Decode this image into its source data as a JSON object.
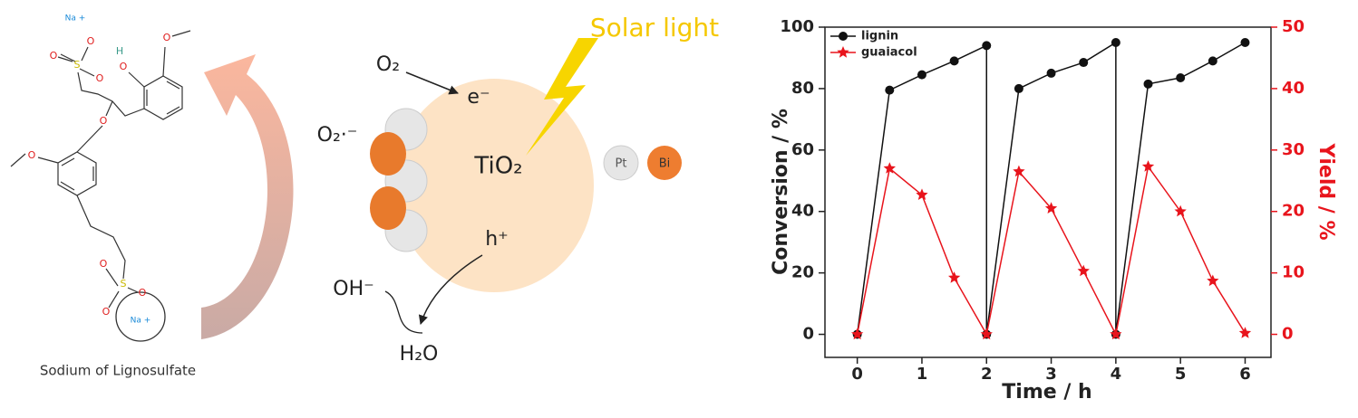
{
  "molecule": {
    "atoms": [
      "Na +",
      "O",
      "O",
      "S",
      "O",
      "H",
      "O",
      "O",
      "O",
      "O",
      "S",
      "O",
      "O",
      "O",
      "Na +"
    ],
    "caption": "Sodium of Lignosulfate"
  },
  "scheme": {
    "solar": "Solar light",
    "oxygen": "O₂",
    "electron": "e⁻",
    "catalyst": "TiO₂",
    "superoxide": "O₂·⁻",
    "hole": "h⁺",
    "hydroxide": "OH⁻",
    "water": "H₂O",
    "pt": "Pt",
    "bi": "Bi"
  },
  "chart_data": {
    "type": "line",
    "xlabel": "Time / h",
    "ylabel": "Conversion / %",
    "y2label": "Yield / %",
    "xlim": [
      -0.5,
      6.4
    ],
    "xticks": [
      0,
      1,
      2,
      3,
      4,
      5,
      6
    ],
    "ylim": [
      -7.5,
      100
    ],
    "yticks": [
      0,
      20,
      40,
      60,
      80,
      100
    ],
    "y2lim": [
      -3.75,
      50
    ],
    "y2ticks": [
      0,
      10,
      20,
      30,
      40,
      50
    ],
    "y2color": "#e8141c",
    "legend": "upper left",
    "series": [
      {
        "name": "lignin",
        "color": "#111111",
        "marker": "circle",
        "x": [
          0,
          0.5,
          1,
          1.5,
          2,
          2,
          2.5,
          3,
          3.5,
          4,
          4,
          4.5,
          5,
          5.5,
          6
        ],
        "values": [
          0,
          79.5,
          84.5,
          89,
          94,
          0,
          80,
          85,
          88.5,
          95,
          0,
          81.5,
          83.5,
          89,
          95
        ]
      },
      {
        "name": "guaiacol",
        "color": "#e8141c",
        "marker": "star",
        "axis": "y2",
        "x": [
          0,
          0.5,
          1,
          1.5,
          2,
          2.5,
          3,
          3.5,
          4,
          4.5,
          5,
          5.5,
          6
        ],
        "values": [
          0,
          27,
          22.7,
          9.2,
          0,
          26.5,
          20.5,
          10.3,
          0,
          27.3,
          20,
          8.7,
          0.2
        ]
      }
    ]
  }
}
